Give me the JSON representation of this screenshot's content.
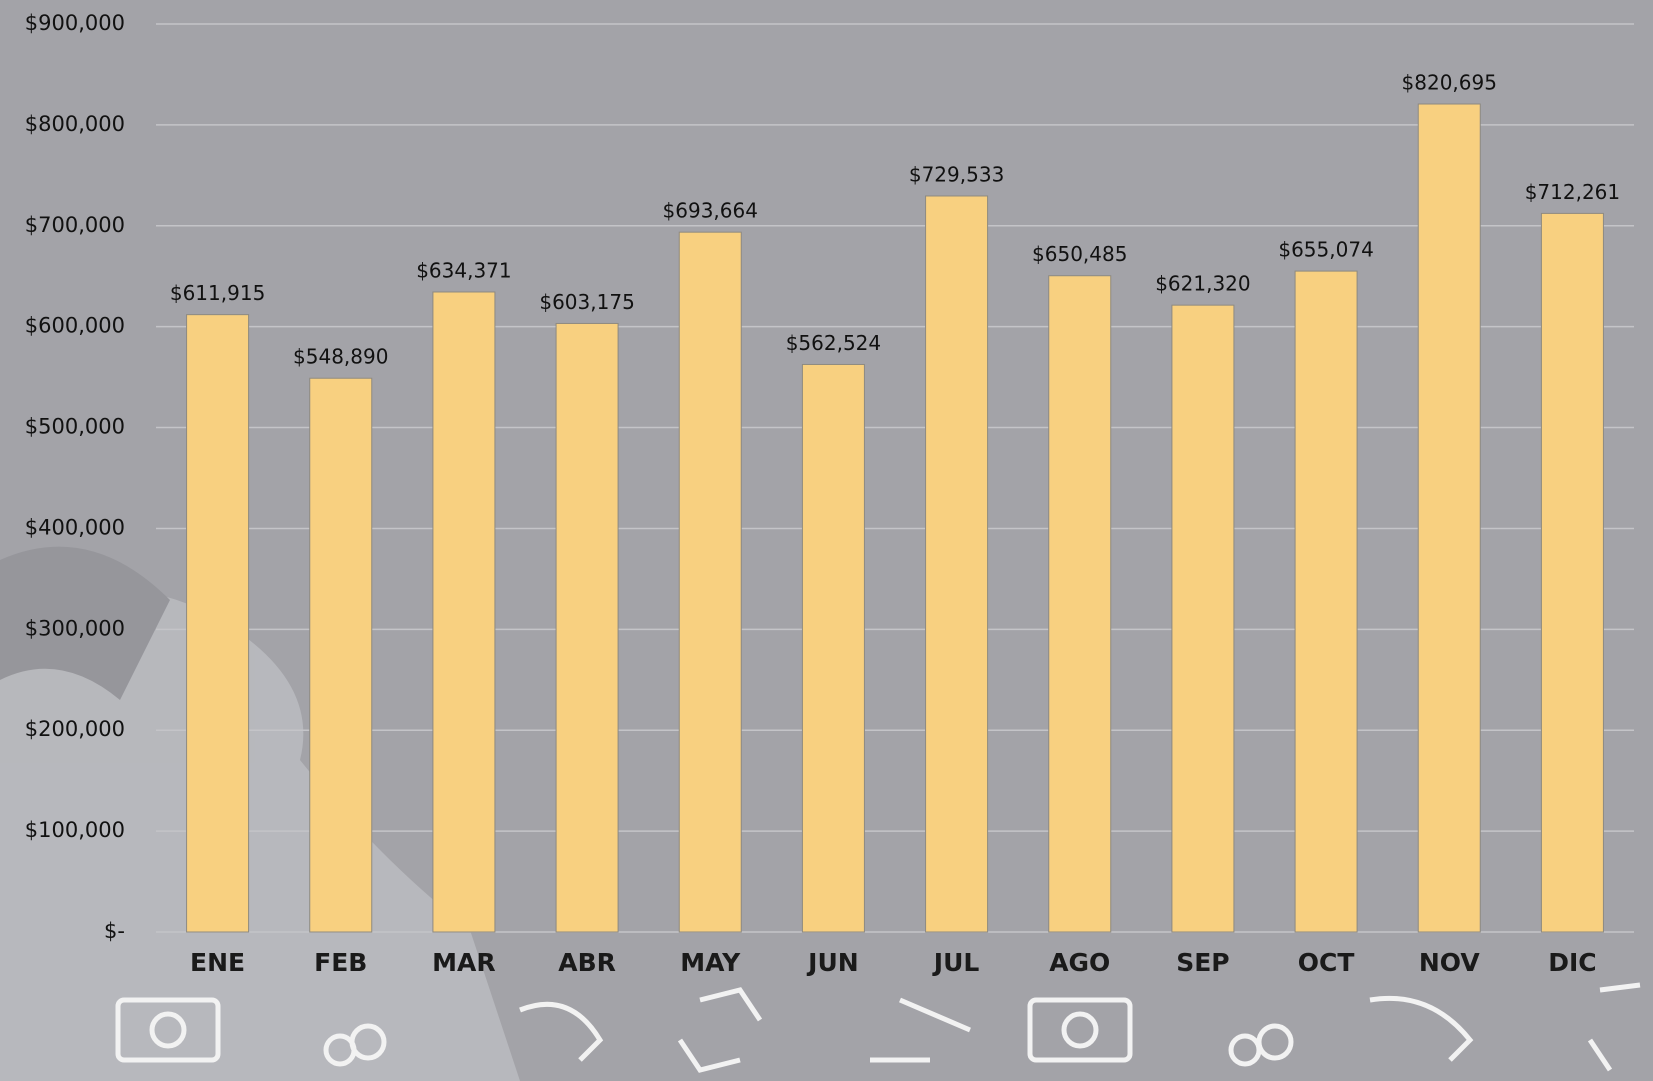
{
  "chart_data": {
    "type": "bar",
    "categories": [
      "ENE",
      "FEB",
      "MAR",
      "ABR",
      "MAY",
      "JUN",
      "JUL",
      "AGO",
      "SEP",
      "OCT",
      "NOV",
      "DIC"
    ],
    "values": [
      611915,
      548890,
      634371,
      603175,
      693664,
      562524,
      729533,
      650485,
      621320,
      655074,
      820695,
      712261
    ],
    "value_labels": [
      "$611,915",
      "$548,890",
      "$634,371",
      "$603,175",
      "$693,664",
      "$562,524",
      "$729,533",
      "$650,485",
      "$621,320",
      "$655,074",
      "$820,695",
      "$712,261"
    ],
    "color": "#f8d080",
    "ylim": [
      0,
      900000
    ],
    "yticks": [
      {
        "value": 0,
        "label": "$-"
      },
      {
        "value": 100000,
        "label": "$100,000"
      },
      {
        "value": 200000,
        "label": "$200,000"
      },
      {
        "value": 300000,
        "label": "$300,000"
      },
      {
        "value": 400000,
        "label": "$400,000"
      },
      {
        "value": 500000,
        "label": "$500,000"
      },
      {
        "value": 600000,
        "label": "$600,000"
      },
      {
        "value": 700000,
        "label": "$700,000"
      },
      {
        "value": 800000,
        "label": "$800,000"
      },
      {
        "value": 900000,
        "label": "$900,000"
      }
    ],
    "grid": true
  }
}
